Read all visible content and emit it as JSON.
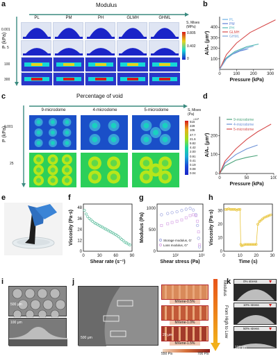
{
  "fig": {
    "a": {
      "letter": "a",
      "title": "Modulus",
      "cols": [
        "PL",
        "PM",
        "PH",
        "GLMH",
        "GHML"
      ],
      "ylabel": "P (kPa)",
      "rows": [
        "0.001",
        "5",
        "100",
        "300"
      ],
      "cbar_title": "S, Mises\n(MPa)",
      "cbar_ticks": [
        "0.805",
        "0.402",
        "0"
      ],
      "colors": {
        "low": "#1a24c8",
        "mid": "#16d7d7",
        "high": "#e8d21a",
        "peak": "#d61a1a"
      }
    },
    "b": {
      "letter": "b",
      "chart_data": {
        "type": "line",
        "xlabel": "Pressure (kPa)",
        "ylabel": "A/A₀ (μm²)",
        "xlim": [
          0,
          320
        ],
        "ylim": [
          0,
          500
        ],
        "xticks": [
          0,
          100,
          200,
          300
        ],
        "yticks": [
          100,
          200,
          300,
          400
        ],
        "series": [
          {
            "name": "PL",
            "color": "#6ab0e6",
            "x": [
              0,
              30,
              70,
              120,
              170
            ],
            "y": [
              0,
              90,
              140,
              175,
              195
            ]
          },
          {
            "name": "PM",
            "color": "#5b7fd6",
            "x": [
              0,
              30,
              70,
              120,
              160
            ],
            "y": [
              0,
              95,
              140,
              175,
              190
            ]
          },
          {
            "name": "PH",
            "color": "#4db7b2",
            "x": [
              0,
              40,
              90,
              160,
              230
            ],
            "y": [
              0,
              110,
              170,
              215,
              240
            ]
          },
          {
            "name": "GLMH",
            "color": "#d64a4a",
            "x": [
              0,
              40,
              100,
              180,
              280,
              330
            ],
            "y": [
              0,
              140,
              250,
              350,
              430,
              470
            ]
          },
          {
            "name": "GHML",
            "color": "#7aa3d8",
            "x": [
              0,
              40,
              90,
              150,
              200
            ],
            "y": [
              0,
              100,
              160,
              200,
              220
            ]
          }
        ]
      }
    },
    "c": {
      "letter": "c",
      "title": "Percentage of void",
      "cols": [
        "9-microdome",
        "4-microdome",
        "5-microdome"
      ],
      "ylabel": "P (kPa)",
      "rows": [
        "0.001",
        "25"
      ],
      "cbar_title": "S, Mises\n(Pa)",
      "cbar_exp": "×10³",
      "cbar_ticks": [
        "515",
        "229",
        "105",
        "47.7",
        "21.6",
        "9.82",
        "4.42",
        "2.00",
        "0.91",
        "0.41",
        "0.19",
        "0.08",
        "0.04"
      ]
    },
    "d": {
      "letter": "d",
      "chart_data": {
        "type": "line",
        "xlabel": "Pressure (kPa)",
        "ylabel": "A/A₀ (μm²)",
        "xlim": [
          0,
          100
        ],
        "ylim": [
          0,
          300
        ],
        "xticks": [
          0,
          50,
          100
        ],
        "yticks": [
          0,
          100,
          200
        ],
        "series": [
          {
            "name": "9-microdome",
            "color": "#4aa37a",
            "x": [
              0,
              10,
              30,
              50,
              70
            ],
            "y": [
              0,
              40,
              70,
              85,
              95
            ]
          },
          {
            "name": "4-microdome",
            "color": "#6a8fd6",
            "x": [
              0,
              10,
              30,
              50,
              70
            ],
            "y": [
              0,
              55,
              100,
              130,
              150
            ]
          },
          {
            "name": "5-microdome",
            "color": "#d64a4a",
            "x": [
              0,
              10,
              30,
              50,
              70,
              95
            ],
            "y": [
              0,
              65,
              130,
              180,
              220,
              260
            ]
          }
        ]
      }
    },
    "e": {
      "letter": "e"
    },
    "f": {
      "letter": "f",
      "chart_data": {
        "type": "scatter",
        "xlabel": "Shear rate (s⁻¹)",
        "ylabel": "Viscosity (Pa·s)",
        "xlim": [
          0,
          90
        ],
        "ylim": [
          0,
          52
        ],
        "xticks": [
          0,
          30,
          60,
          90
        ],
        "yticks": [
          0,
          12,
          24,
          36,
          48
        ],
        "color": "#5fbf9f",
        "x": [
          2,
          5,
          8,
          11,
          14,
          17,
          20,
          23,
          26,
          29,
          32,
          35,
          38,
          41,
          44,
          47,
          50,
          53,
          56,
          59,
          62,
          65,
          68,
          71,
          74,
          77,
          80,
          83,
          86
        ],
        "y": [
          45,
          41,
          38,
          36,
          34.5,
          33,
          31.5,
          30.5,
          29.5,
          28.5,
          27.5,
          26.5,
          25.5,
          24.5,
          23.5,
          22.5,
          21.5,
          20.5,
          19.5,
          18.5,
          17.5,
          16,
          14.5,
          13,
          11.5,
          10,
          9,
          8,
          7
        ]
      }
    },
    "g": {
      "letter": "g",
      "chart_data": {
        "type": "scatter",
        "xlabel": "Shear stress (Pa)",
        "ylabel": "Modulus (Pa)",
        "log_x": true,
        "ylim": [
          0,
          1100
        ],
        "xticklabels": [
          "10²",
          "10³"
        ],
        "yticks": [
          0,
          500,
          1000
        ],
        "series": [
          {
            "name": "Storage modulus, G′",
            "color": "#9fa6e0",
            "x": [
              40,
              60,
              80,
              110,
              150,
              200,
              260,
              320,
              380,
              420,
              450,
              480
            ],
            "y": [
              850,
              880,
              900,
              920,
              950,
              980,
              1000,
              960,
              850,
              600,
              300,
              100
            ]
          },
          {
            "name": "Loss modulus, G″",
            "color": "#d8a6e6",
            "x": [
              40,
              60,
              80,
              110,
              150,
              200,
              260,
              320,
              380,
              420,
              450,
              480
            ],
            "y": [
              600,
              640,
              670,
              700,
              730,
              780,
              830,
              850,
              830,
              700,
              450,
              150
            ]
          }
        ]
      }
    },
    "h": {
      "letter": "h",
      "chart_data": {
        "type": "scatter",
        "xlabel": "Time (s)",
        "ylabel": "Viscosity (Pa·s)",
        "xlim": [
          0,
          30
        ],
        "ylim": [
          0,
          35
        ],
        "xticks": [
          0,
          10,
          20,
          30
        ],
        "yticks": [
          0,
          10,
          20,
          30
        ],
        "color": "#e8c43a",
        "x": [
          1,
          2,
          3,
          4,
          5,
          6,
          7,
          8,
          9,
          10,
          10.5,
          11,
          12,
          13,
          14,
          15,
          16,
          17,
          18,
          19,
          20,
          21,
          22,
          23,
          24,
          25,
          26,
          27,
          28,
          29
        ],
        "y": [
          31,
          31,
          31.5,
          31,
          31,
          31,
          31,
          30.5,
          31,
          31,
          5,
          4,
          4.5,
          5,
          5,
          5,
          5,
          5,
          5,
          5,
          5,
          20,
          22,
          23,
          24,
          25,
          25.5,
          26,
          26.5,
          27
        ]
      }
    },
    "i": {
      "letter": "i",
      "scale1": "500 μm",
      "scale2": "100 μm"
    },
    "j": {
      "letter": "j",
      "scale": "500 μm",
      "scale_inset": "20 μm",
      "insets": [
        "MXene-0.5%",
        "MXene-1.0%",
        "MXene-1.5%"
      ],
      "cbar_low": "550 Pa",
      "cbar_high": "700 Pa",
      "arrow_label": "From High to Low",
      "arrow_title": "Modulus"
    },
    "k": {
      "letter": "k",
      "frames": [
        "0% stress",
        "10% stress",
        "50% stress"
      ],
      "scale": "100 μm"
    }
  }
}
